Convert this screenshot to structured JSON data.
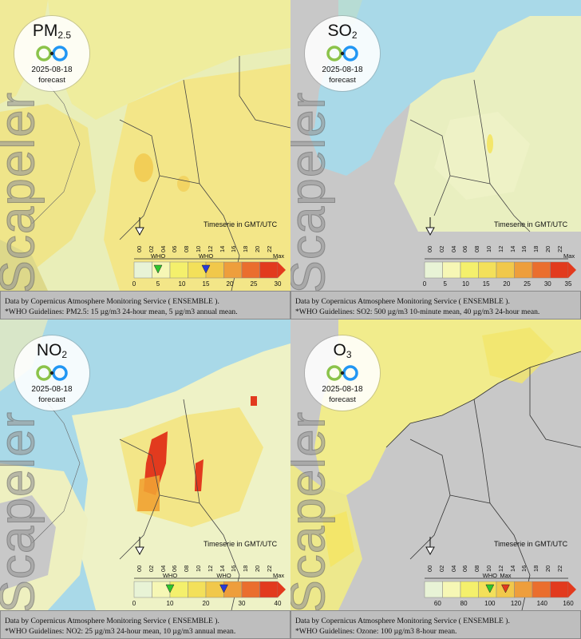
{
  "colors": {
    "sea": "#a9d9e8",
    "land_nodata": "#c8c8c8",
    "low": "#eef2c6",
    "mid": "#f3e66a",
    "high": "#e23a1e",
    "who_marker": "#2ec62e",
    "now_marker": "#2a3bd6"
  },
  "panels": [
    {
      "id": "pm25",
      "pollutant_main": "PM",
      "pollutant_sub": "2.5",
      "date": "2025-08-18",
      "forecast_label": "forecast",
      "watermark": "Scapeler",
      "timeserie_label": "Timeserie in GMT/UTC",
      "hours": [
        "00",
        "02",
        "04",
        "06",
        "08",
        "10",
        "12",
        "14",
        "16",
        "18",
        "20",
        "22"
      ],
      "who_label_1": "WHO",
      "who_label_2": "WHO",
      "max_label": "Max",
      "scale_ticks": [
        "0",
        "5",
        "10",
        "15",
        "20",
        "25",
        "30"
      ],
      "who_markers": [
        {
          "value": 5,
          "color": "green"
        },
        {
          "value": 15,
          "color": "blue"
        }
      ],
      "scale_min": 0,
      "scale_max": 30,
      "footer_line1": "Data by Copernicus Atmosphere Monitoring Service ( ENSEMBLE ).",
      "footer_line2": "*WHO Guidelines: PM2.5: 15 µg/m3 24-hour mean, 5 µg/m3 annual mean."
    },
    {
      "id": "so2",
      "pollutant_main": "SO",
      "pollutant_sub": "2",
      "date": "2025-08-18",
      "forecast_label": "forecast",
      "watermark": "Scapeler",
      "timeserie_label": "Timeserie in GMT/UTC",
      "hours": [
        "00",
        "02",
        "04",
        "06",
        "08",
        "10",
        "12",
        "14",
        "16",
        "18",
        "20",
        "22"
      ],
      "who_label_1": "",
      "who_label_2": "",
      "max_label": "Max",
      "scale_ticks": [
        "0",
        "5",
        "10",
        "15",
        "20",
        "25",
        "30",
        "35"
      ],
      "who_markers": [],
      "scale_min": 0,
      "scale_max": 35,
      "footer_line1": "Data by Copernicus Atmosphere Monitoring Service ( ENSEMBLE ).",
      "footer_line2": "*WHO Guidelines: SO2: 500 µg/m3 10-minute mean, 40 µg/m3 24-hour mean."
    },
    {
      "id": "no2",
      "pollutant_main": "NO",
      "pollutant_sub": "2",
      "date": "2025-08-18",
      "forecast_label": "forecast",
      "watermark": "Scapeler",
      "timeserie_label": "Timeserie in GMT/UTC",
      "hours": [
        "00",
        "02",
        "04",
        "06",
        "08",
        "10",
        "12",
        "14",
        "16",
        "18",
        "20",
        "22"
      ],
      "who_label_1": "WHO",
      "who_label_2": "WHO",
      "max_label": "Max",
      "scale_ticks": [
        "0",
        "10",
        "20",
        "30",
        "40"
      ],
      "who_markers": [
        {
          "value": 10,
          "color": "green"
        },
        {
          "value": 25,
          "color": "blue"
        }
      ],
      "scale_min": 0,
      "scale_max": 40,
      "footer_line1": "Data by Copernicus Atmosphere Monitoring Service ( ENSEMBLE ).",
      "footer_line2": "*WHO Guidelines: NO2: 25 µg/m3 24-hour mean, 10 µg/m3 annual mean."
    },
    {
      "id": "o3",
      "pollutant_main": "O",
      "pollutant_sub": "3",
      "date": "2025-08-18",
      "forecast_label": "forecast",
      "watermark": "Scapeler",
      "timeserie_label": "Timeserie in GMT/UTC",
      "hours": [
        "00",
        "02",
        "04",
        "06",
        "08",
        "10",
        "12",
        "14",
        "16",
        "18",
        "20",
        "22"
      ],
      "who_label_1": "WHO",
      "who_label_2": "Max",
      "max_label": "",
      "scale_ticks": [
        "60",
        "80",
        "100",
        "120",
        "140",
        "160"
      ],
      "who_markers": [
        {
          "value": 100,
          "color": "green"
        },
        {
          "value": 112,
          "color": "red"
        }
      ],
      "scale_min": 50,
      "scale_max": 160,
      "footer_line1": "Data by Copernicus Atmosphere Monitoring Service ( ENSEMBLE ).",
      "footer_line2": "*WHO Guidelines: Ozone: 100 µg/m3 8-hour mean."
    }
  ]
}
